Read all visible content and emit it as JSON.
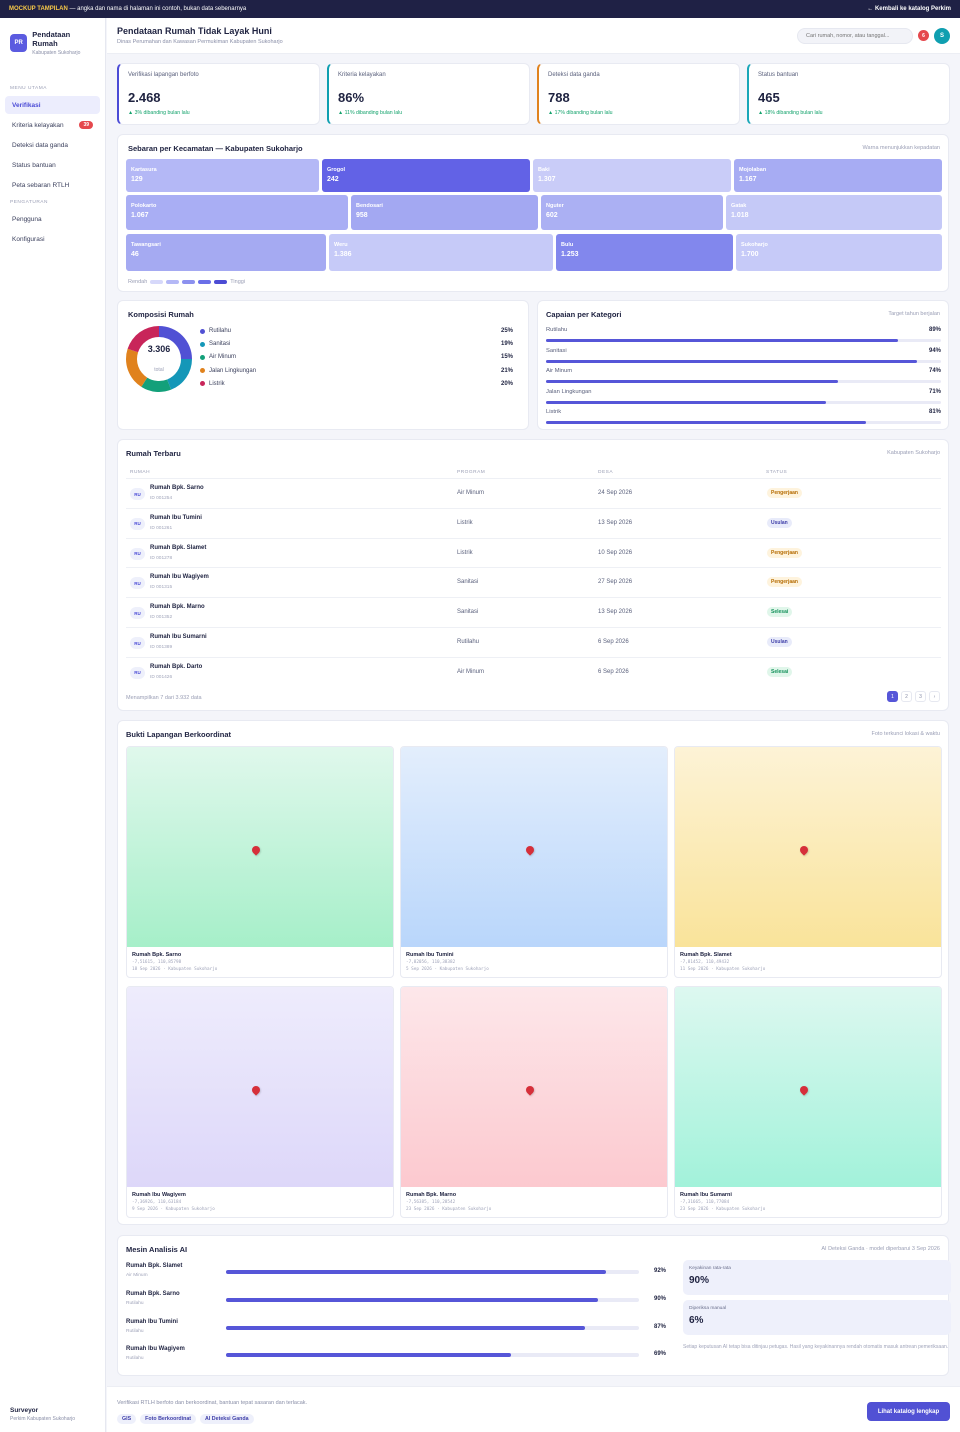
{
  "banner": {
    "tag": "MOCKUP TAMPILAN",
    "text": "— angka dan nama di halaman ini contoh, bukan data sebenarnya",
    "back": "← Kembali ke katalog Perkim"
  },
  "brand": {
    "logo": "PR",
    "title": "Pendataan Rumah",
    "subtitle": "Kabupaten Sukoharjo"
  },
  "sidebar": {
    "section_main": "MENU UTAMA",
    "items": [
      {
        "label": "Verifikasi",
        "active": true
      },
      {
        "label": "Kriteria kelayakan",
        "badge": "39"
      },
      {
        "label": "Deteksi data ganda"
      },
      {
        "label": "Status bantuan"
      },
      {
        "label": "Peta sebaran RTLH"
      }
    ],
    "section_settings": "PENGATURAN",
    "settings_items": [
      {
        "label": "Pengguna"
      },
      {
        "label": "Konfigurasi"
      }
    ],
    "footer_role": "Surveyor",
    "footer_org": "Perkim Kabupaten Sukoharjo"
  },
  "header": {
    "title": "Pendataan Rumah Tidak Layak Huni",
    "subtitle": "Dinas Perumahan dan Kawasan Permukiman Kabupaten Sukoharjo",
    "search_placeholder": "Cari rumah, nomor, atau tanggal...",
    "notif_count": "6",
    "avatar": "S"
  },
  "stats": [
    {
      "label": "Verifikasi lapangan berfoto",
      "value": "2.468",
      "delta": "▲ 3% dibanding bulan lalu",
      "accent": "#4b4bd6"
    },
    {
      "label": "Kriteria kelayakan",
      "value": "86%",
      "delta": "▲ 11% dibanding bulan lalu",
      "accent": "#0f9fb0"
    },
    {
      "label": "Deteksi data ganda",
      "value": "788",
      "delta": "▲ 17% dibanding bulan lalu",
      "accent": "#e0821d"
    },
    {
      "label": "Status bantuan",
      "value": "465",
      "delta": "▲ 18% dibanding bulan lalu",
      "accent": "#1aa7b8"
    }
  ],
  "treemap": {
    "title": "Sebaran per Kecamatan — Kabupaten Sukoharjo",
    "note": "Warna menunjukkan kepadatan",
    "tiles": [
      {
        "name": "Kartasura",
        "value": "129",
        "color": "#b4b8f6"
      },
      {
        "name": "Grogol",
        "value": "242",
        "color": "#6262e6"
      },
      {
        "name": "Baki",
        "value": "1.307",
        "color": "#c9ccf8"
      },
      {
        "name": "Mojolaban",
        "value": "1.167",
        "color": "#a7acf3"
      },
      {
        "name": "Polokarto",
        "value": "1.067",
        "color": "#a9aef4"
      },
      {
        "name": "Bendosari",
        "value": "958",
        "color": "#a3a8f2"
      },
      {
        "name": "Nguter",
        "value": "602",
        "color": "#abb0f3"
      },
      {
        "name": "Gatak",
        "value": "1.018",
        "color": "#c5c9f7"
      },
      {
        "name": "Tawangsari",
        "value": "46",
        "color": "#a5aaf2"
      },
      {
        "name": "Weru",
        "value": "1.386",
        "color": "#c6caf8"
      },
      {
        "name": "Bulu",
        "value": "1.253",
        "color": "#8287ed"
      },
      {
        "name": "Sukoharjo",
        "value": "1.700",
        "color": "#c6caf8"
      }
    ],
    "legend_low": "Rendah",
    "legend_high": "Tinggi",
    "legend_colors": [
      "#d6d8fa",
      "#b4b8f6",
      "#8c91ef",
      "#6a6fe8",
      "#4c4cd4"
    ]
  },
  "composition": {
    "title": "Komposisi Rumah",
    "total": "3.306",
    "total_label": "total",
    "items": [
      {
        "label": "Rutilahu",
        "pct": "25%",
        "value": 25,
        "color": "#5151d4"
      },
      {
        "label": "Sanitasi",
        "pct": "19%",
        "value": 19,
        "color": "#1497b8"
      },
      {
        "label": "Air Minum",
        "pct": "15%",
        "value": 15,
        "color": "#13a07a"
      },
      {
        "label": "Jalan Lingkungan",
        "pct": "21%",
        "value": 21,
        "color": "#e0821d"
      },
      {
        "label": "Listrik",
        "pct": "20%",
        "value": 20,
        "color": "#c8255a"
      }
    ]
  },
  "achievement": {
    "title": "Capaian per Kategori",
    "note": "Target tahun berjalan",
    "items": [
      {
        "label": "Rutilahu",
        "pct": "89%",
        "value": 0.89
      },
      {
        "label": "Sanitasi",
        "pct": "94%",
        "value": 0.94
      },
      {
        "label": "Air Minum",
        "pct": "74%",
        "value": 0.74
      },
      {
        "label": "Jalan Lingkungan",
        "pct": "71%",
        "value": 0.71
      },
      {
        "label": "Listrik",
        "pct": "81%",
        "value": 0.81
      }
    ]
  },
  "table": {
    "title": "Rumah Terbaru",
    "note": "Kabupaten Sukoharjo",
    "columns": [
      "RUMAH",
      "PROGRAM",
      "DESA",
      "STATUS"
    ],
    "rows": [
      {
        "initials": "RU",
        "name": "Rumah Bpk. Sarno",
        "id": "ID 001254",
        "program": "Air Minum",
        "date": "24 Sep 2026",
        "status": "Pengerjaan",
        "status_class": "s-peng"
      },
      {
        "initials": "RU",
        "name": "Rumah Ibu Tumini",
        "id": "ID 001261",
        "program": "Listrik",
        "date": "13 Sep 2026",
        "status": "Usulan",
        "status_class": "s-usul"
      },
      {
        "initials": "RU",
        "name": "Rumah Bpk. Slamet",
        "id": "ID 001278",
        "program": "Listrik",
        "date": "10 Sep 2026",
        "status": "Pengerjaan",
        "status_class": "s-peng"
      },
      {
        "initials": "RU",
        "name": "Rumah Ibu Wagiyem",
        "id": "ID 001315",
        "program": "Sanitasi",
        "date": "27 Sep 2026",
        "status": "Pengerjaan",
        "status_class": "s-peng"
      },
      {
        "initials": "RU",
        "name": "Rumah Bpk. Marno",
        "id": "ID 001352",
        "program": "Sanitasi",
        "date": "13 Sep 2026",
        "status": "Selesai",
        "status_class": "s-sele"
      },
      {
        "initials": "RU",
        "name": "Rumah Ibu Sumarni",
        "id": "ID 001389",
        "program": "Rutilahu",
        "date": "6 Sep 2026",
        "status": "Usulan",
        "status_class": "s-usul"
      },
      {
        "initials": "RU",
        "name": "Rumah Bpk. Darto",
        "id": "ID 001426",
        "program": "Air Minum",
        "date": "6 Sep 2026",
        "status": "Selesai",
        "status_class": "s-sele"
      }
    ],
    "footer": "Menampilkan 7 dari 3.932 data",
    "pages": [
      "1",
      "2",
      "3",
      "›"
    ]
  },
  "photos": {
    "title": "Bukti Lapangan Berkoordinat",
    "note": "Foto terkunci lokasi & waktu",
    "items": [
      {
        "title": "Rumah Bpk. Sarno",
        "coords": "-7,51615, 110,85798",
        "meta": "18 Sep 2026 · Kabupaten Sukoharjo",
        "bg": "linear-gradient(180deg,#e0f8ec,#a6efc9)"
      },
      {
        "title": "Rumah Ibu Tumini",
        "coords": "-7,82056, 110,38382",
        "meta": "5 Sep 2026 · Kabupaten Sukoharjo",
        "bg": "linear-gradient(180deg,#e3eefc,#b9d6fb)"
      },
      {
        "title": "Rumah Bpk. Slamet",
        "coords": "-7,81452, 110,49432",
        "meta": "11 Sep 2026 · Kabupaten Sukoharjo",
        "bg": "linear-gradient(180deg,#fdf3d6,#f9e39a)"
      },
      {
        "title": "Rumah Ibu Wagiyem",
        "coords": "-7,36926, 110,63184",
        "meta": "9 Sep 2026 · Kabupaten Sukoharjo",
        "bg": "linear-gradient(180deg,#eeecfc,#ddd7f9)"
      },
      {
        "title": "Rumah Bpk. Marno",
        "coords": "-7,56385, 110,28542",
        "meta": "23 Sep 2026 · Kabupaten Sukoharjo",
        "bg": "linear-gradient(180deg,#fde7ea,#fcc9cf)"
      },
      {
        "title": "Rumah Ibu Sumarni",
        "coords": "-7,31665, 110,77084",
        "meta": "23 Sep 2026 · Kabupaten Sukoharjo",
        "bg": "linear-gradient(180deg,#ddf8f0,#a2f2da)"
      }
    ]
  },
  "ai": {
    "title": "Mesin Analisis AI",
    "note": "AI Deteksi Ganda · model diperbarui 3 Sep 2026",
    "rows": [
      {
        "name": "Rumah Bpk. Slamet",
        "sub": "Air Minum",
        "pct": "92%",
        "value": 0.92
      },
      {
        "name": "Rumah Bpk. Sarno",
        "sub": "Rutilahu",
        "pct": "90%",
        "value": 0.9
      },
      {
        "name": "Rumah Ibu Tumini",
        "sub": "Rutilahu",
        "pct": "87%",
        "value": 0.87
      },
      {
        "name": "Rumah Ibu Wagiyem",
        "sub": "Rutilahu",
        "pct": "69%",
        "value": 0.69
      }
    ],
    "metric1_label": "Keyakinan rata-rata",
    "metric1_value": "90%",
    "metric2_label": "Diperiksa manual",
    "metric2_value": "6%",
    "disclaimer": "Setiap keputusan AI tetap bisa ditinjau petugas. Hasil yang keyakinannya rendah otomatis masuk antrean pemeriksaan."
  },
  "footer": {
    "text": "Verifikasi RTLH berfoto dan berkoordinat, bantuan tepat sasaran dan terlacak.",
    "chips": [
      "GIS",
      "Foto Berkoordinat",
      "AI Deteksi Ganda"
    ],
    "cta": "Lihat katalog lengkap"
  }
}
